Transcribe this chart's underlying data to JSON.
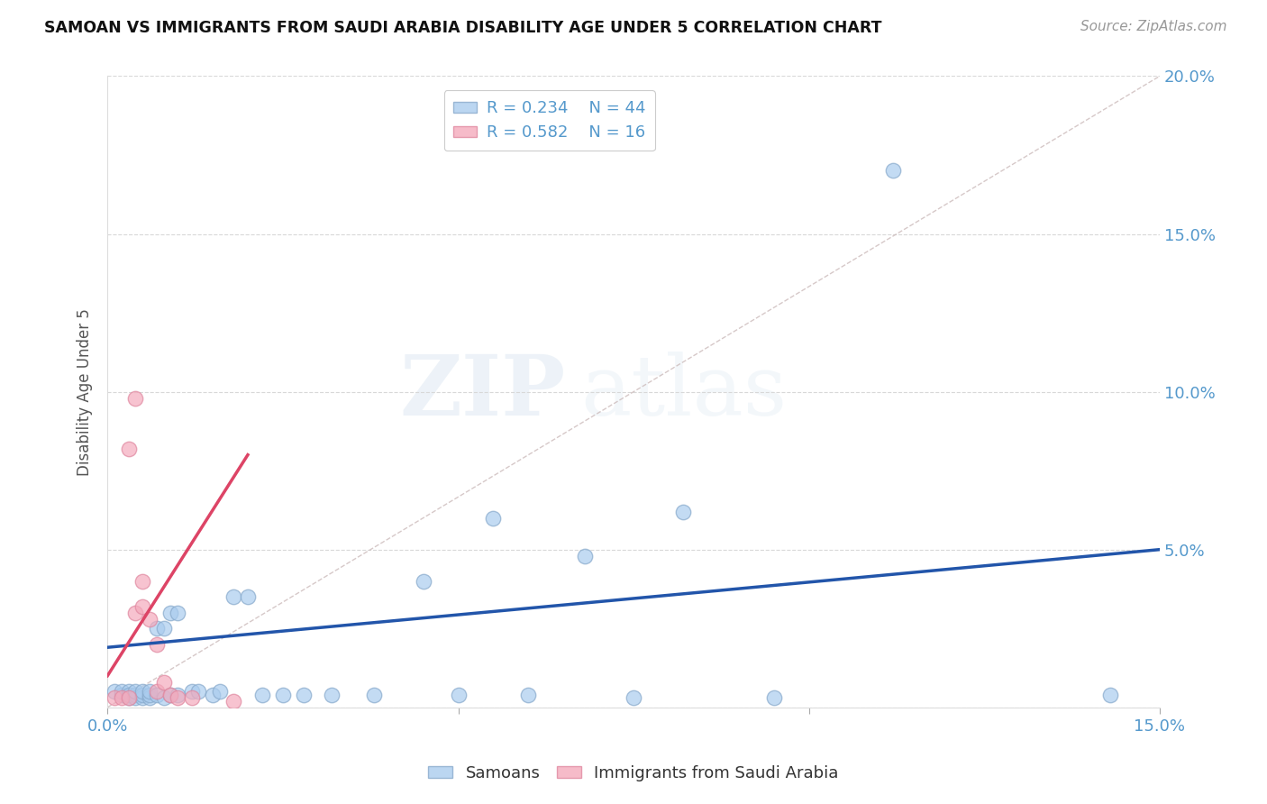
{
  "title": "SAMOAN VS IMMIGRANTS FROM SAUDI ARABIA DISABILITY AGE UNDER 5 CORRELATION CHART",
  "source": "Source: ZipAtlas.com",
  "ylabel": "Disability Age Under 5",
  "xlim": [
    0.0,
    0.15
  ],
  "ylim": [
    0.0,
    0.2
  ],
  "background_color": "#ffffff",
  "tick_color": "#5599cc",
  "grid_color": "#d8d8d8",
  "blue_face": "#aaccee",
  "blue_edge": "#88aacc",
  "pink_face": "#f4aabc",
  "pink_edge": "#e088a0",
  "blue_line_color": "#2255aa",
  "pink_line_color": "#dd4466",
  "diag_color": "#ccbbbb",
  "R_blue": 0.234,
  "N_blue": 44,
  "R_pink": 0.582,
  "N_pink": 16,
  "blue_scatter_x": [
    0.001,
    0.002,
    0.002,
    0.003,
    0.003,
    0.003,
    0.004,
    0.004,
    0.004,
    0.005,
    0.005,
    0.005,
    0.006,
    0.006,
    0.006,
    0.007,
    0.007,
    0.008,
    0.008,
    0.009,
    0.009,
    0.01,
    0.01,
    0.012,
    0.013,
    0.015,
    0.016,
    0.018,
    0.02,
    0.022,
    0.025,
    0.028,
    0.032,
    0.038,
    0.045,
    0.05,
    0.055,
    0.06,
    0.068,
    0.075,
    0.082,
    0.095,
    0.112,
    0.143
  ],
  "blue_scatter_y": [
    0.005,
    0.004,
    0.005,
    0.003,
    0.005,
    0.004,
    0.004,
    0.003,
    0.005,
    0.003,
    0.004,
    0.005,
    0.003,
    0.004,
    0.005,
    0.004,
    0.025,
    0.003,
    0.025,
    0.004,
    0.03,
    0.03,
    0.004,
    0.005,
    0.005,
    0.004,
    0.005,
    0.035,
    0.035,
    0.004,
    0.004,
    0.004,
    0.004,
    0.004,
    0.04,
    0.004,
    0.06,
    0.004,
    0.048,
    0.003,
    0.062,
    0.003,
    0.17,
    0.004
  ],
  "pink_scatter_x": [
    0.001,
    0.002,
    0.003,
    0.003,
    0.004,
    0.004,
    0.005,
    0.005,
    0.006,
    0.007,
    0.007,
    0.008,
    0.009,
    0.01,
    0.012,
    0.018
  ],
  "pink_scatter_y": [
    0.003,
    0.003,
    0.082,
    0.003,
    0.098,
    0.03,
    0.04,
    0.032,
    0.028,
    0.02,
    0.005,
    0.008,
    0.004,
    0.003,
    0.003,
    0.002
  ],
  "blue_trend_x0": 0.0,
  "blue_trend_x1": 0.15,
  "blue_trend_y0": 0.019,
  "blue_trend_y1": 0.05,
  "pink_trend_x0": 0.0,
  "pink_trend_x1": 0.02,
  "pink_trend_y0": 0.01,
  "pink_trend_y1": 0.08
}
